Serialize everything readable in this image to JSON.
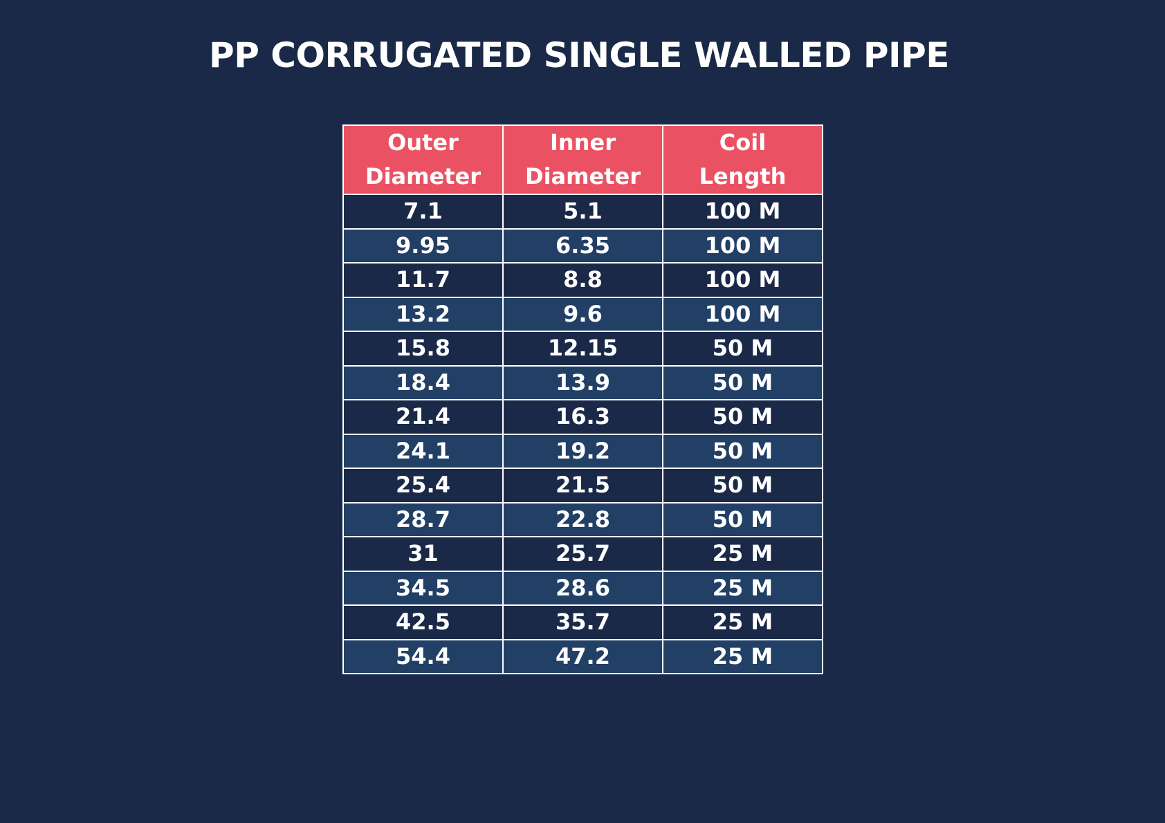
{
  "title": "PP CORRUGATED SINGLE WALLED PIPE",
  "colors": {
    "background": "#1b2948",
    "header_bg": "#ea5263",
    "row_alt_bg": "#223f66",
    "border": "#ffffff",
    "text": "#ffffff"
  },
  "table": {
    "headers": [
      [
        "Outer",
        "Diameter"
      ],
      [
        "Inner",
        "Diameter"
      ],
      [
        "Coil",
        "Length"
      ]
    ],
    "rows": [
      [
        "7.1",
        "5.1",
        "100 M"
      ],
      [
        "9.95",
        "6.35",
        "100 M"
      ],
      [
        "11.7",
        "8.8",
        "100 M"
      ],
      [
        "13.2",
        "9.6",
        "100 M"
      ],
      [
        "15.8",
        "12.15",
        "50 M"
      ],
      [
        "18.4",
        "13.9",
        "50 M"
      ],
      [
        "21.4",
        "16.3",
        "50 M"
      ],
      [
        "24.1",
        "19.2",
        "50 M"
      ],
      [
        "25.4",
        "21.5",
        "50 M"
      ],
      [
        "28.7",
        "22.8",
        "50 M"
      ],
      [
        "31",
        "25.7",
        "25 M"
      ],
      [
        "34.5",
        "28.6",
        "25 M"
      ],
      [
        "42.5",
        "35.7",
        "25 M"
      ],
      [
        "54.4",
        "47.2",
        "25 M"
      ]
    ]
  }
}
